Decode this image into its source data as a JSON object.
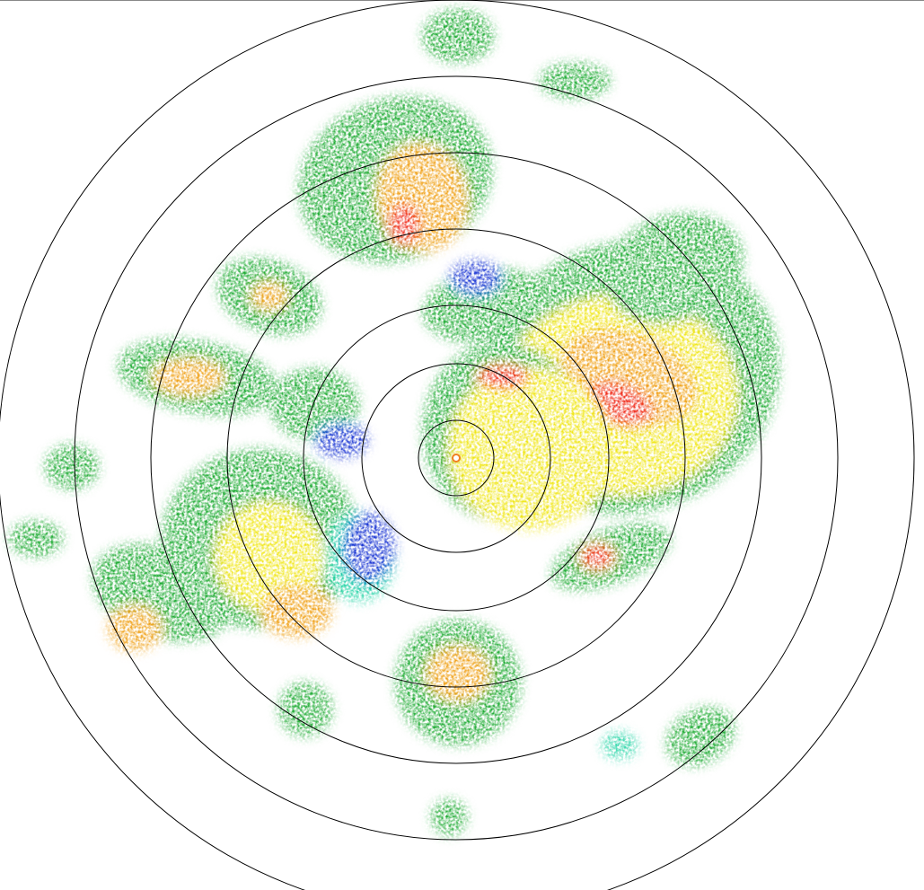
{
  "display": {
    "type": "weather radar reflectivity PPI",
    "range_rings": 7,
    "ring_color": "#000000",
    "center_marker_color": "#ffffff"
  },
  "palette": {
    "weak_blue": "#1432d2",
    "light_cyan": "#19d2a0",
    "light_green": "#28e03c",
    "green": "#1faa32",
    "yellow": "#f0e614",
    "orange": "#f0a014",
    "red": "#f02814"
  }
}
